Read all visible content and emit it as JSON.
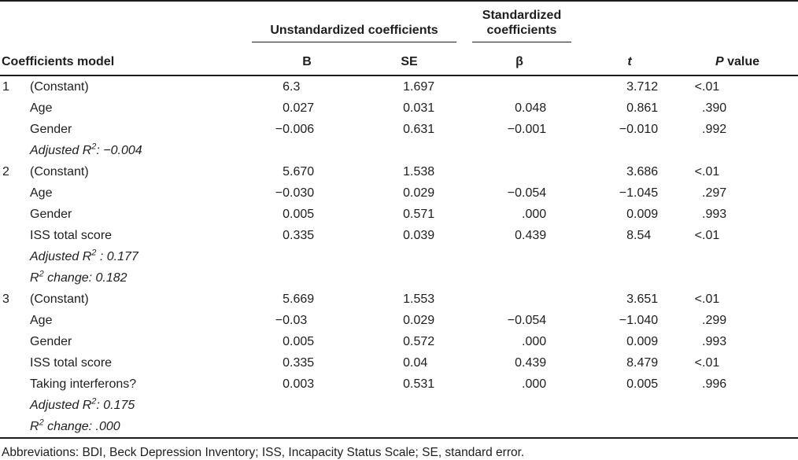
{
  "table": {
    "spanners": [
      {
        "label": "Unstandardized coefficients"
      },
      {
        "label": "Standardized coefficients"
      }
    ],
    "columns": {
      "model": "Coefficients model",
      "b": "B",
      "se": "SE",
      "beta": "β",
      "t_italic": "t",
      "p_italic": "P",
      "p_rest": " value"
    },
    "models": [
      {
        "number": "1",
        "rows": [
          {
            "label": "(Constant)",
            "b": "6.3",
            "se": "1.697",
            "beta": "",
            "t": "3.712",
            "p": "<.01"
          },
          {
            "label": "Age",
            "b": "0.027",
            "se": "0.031",
            "beta": "0.048",
            "t": "0.861",
            "p": ".390"
          },
          {
            "label": "Gender",
            "b": "−0.006",
            "se": "0.631",
            "beta": "−0.001",
            "t": "−0.010",
            "p": ".992"
          }
        ],
        "notes": [
          {
            "pre": "Adjusted R",
            "sup": "2",
            "post": ": −0.004"
          }
        ]
      },
      {
        "number": "2",
        "rows": [
          {
            "label": "(Constant)",
            "b": "5.670",
            "se": "1.538",
            "beta": "",
            "t": "3.686",
            "p": "<.01"
          },
          {
            "label": "Age",
            "b": "−0.030",
            "se": "0.029",
            "beta": "−0.054",
            "t": "−1.045",
            "p": ".297"
          },
          {
            "label": "Gender",
            "b": "0.005",
            "se": "0.571",
            "beta": ".000",
            "t": "0.009",
            "p": ".993"
          },
          {
            "label": "ISS total score",
            "b": "0.335",
            "se": "0.039",
            "beta": "0.439",
            "t": "8.54",
            "p": "<.01"
          }
        ],
        "notes": [
          {
            "pre": "Adjusted R",
            "sup": "2",
            "post": " : 0.177"
          },
          {
            "pre": "R",
            "sup": "2",
            "post": " change: 0.182"
          }
        ]
      },
      {
        "number": "3",
        "rows": [
          {
            "label": "(Constant)",
            "b": "5.669",
            "se": "1.553",
            "beta": "",
            "t": "3.651",
            "p": "<.01"
          },
          {
            "label": "Age",
            "b": "−0.03",
            "se": "0.029",
            "beta": "−0.054",
            "t": "−1.040",
            "p": ".299"
          },
          {
            "label": "Gender",
            "b": "0.005",
            "se": "0.572",
            "beta": ".000",
            "t": "0.009",
            "p": ".993"
          },
          {
            "label": "ISS total score",
            "b": "0.335",
            "se": "0.04",
            "beta": "0.439",
            "t": "8.479",
            "p": "<.01"
          },
          {
            "label": "Taking interferons?",
            "b": "0.003",
            "se": "0.531",
            "beta": ".000",
            "t": "0.005",
            "p": ".996"
          }
        ],
        "notes": [
          {
            "pre": "Adjusted R",
            "sup": "2",
            "post": ": 0.175"
          },
          {
            "pre": "R",
            "sup": "2",
            "post": " change: .000"
          }
        ]
      }
    ],
    "footnote": "Abbreviations: BDI, Beck Depression Inventory; ISS, Incapacity Status Scale; SE, standard error."
  }
}
